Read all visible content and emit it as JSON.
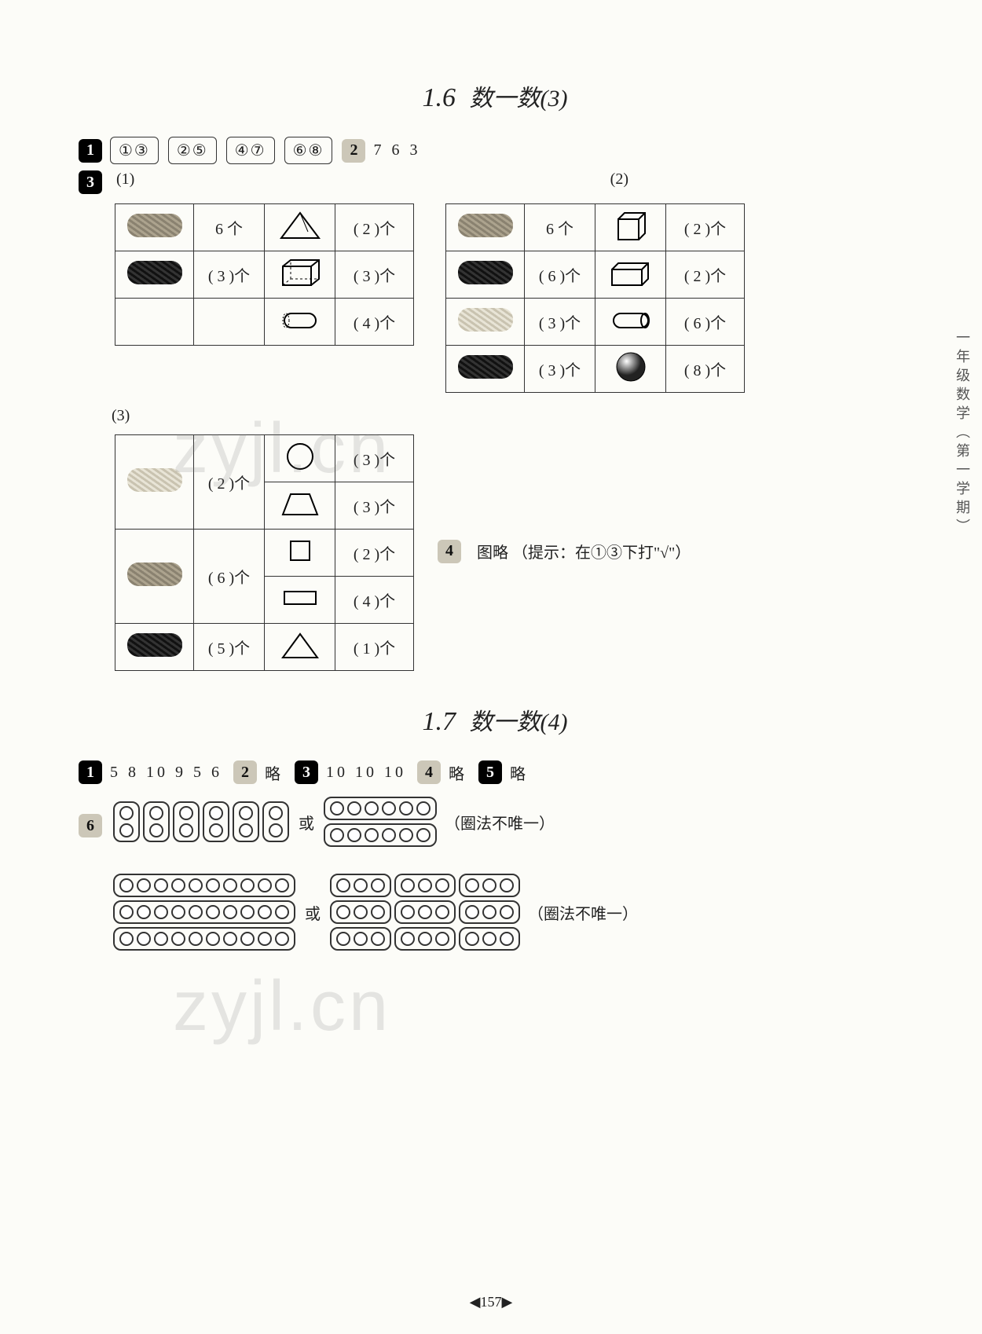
{
  "sideLabel": "一年级数学（第一学期）",
  "pageNumber": "◀157▶",
  "watermark_upper": "zyjl.cn",
  "watermark_lower": "zyjl.cn",
  "section16": {
    "title_num": "1.6",
    "title_text": "数一数(3)",
    "q1": {
      "boxes": [
        "①③",
        "②⑤",
        "④⑦",
        "⑥⑧"
      ]
    },
    "q2": {
      "values": "7  6  3"
    },
    "q3": {
      "sub1_label": "(1)",
      "sub2_label": "(2)",
      "sub3_label": "(3)",
      "t1": {
        "rows": [
          {
            "scribble": "mid",
            "count": "6 个",
            "shape": "triangle-3d",
            "shape_count": "( 2 )个"
          },
          {
            "scribble": "dark",
            "count": "( 3 )个",
            "shape": "cuboid-wire",
            "shape_count": "( 3 )个"
          },
          {
            "scribble": "",
            "count": "",
            "shape": "cylinder-h",
            "shape_count": "( 4 )个"
          }
        ]
      },
      "t2": {
        "rows": [
          {
            "scribble": "mid",
            "count": "6 个",
            "shape": "cube",
            "shape_count": "( 2 )个"
          },
          {
            "scribble": "dark",
            "count": "( 6 )个",
            "shape": "cuboid",
            "shape_count": "( 2 )个"
          },
          {
            "scribble": "light",
            "count": "( 3 )个",
            "shape": "cylinder",
            "shape_count": "( 6 )个"
          },
          {
            "scribble": "dark",
            "count": "( 3 )个",
            "shape": "sphere",
            "shape_count": "( 8 )个"
          }
        ]
      },
      "t3": {
        "rows": [
          {
            "scribble": "light",
            "count": "( 2 )个",
            "shape": "circle",
            "shape_count": "( 3 )个"
          },
          {
            "scribble": "",
            "count": "",
            "shape": "trapezoid",
            "shape_count": "( 3 )个"
          },
          {
            "scribble": "mid",
            "count": "( 6 )个",
            "shape": "square",
            "shape_count": "( 2 )个"
          },
          {
            "scribble": "",
            "count": "",
            "shape": "rectangle",
            "shape_count": "( 4 )个"
          },
          {
            "scribble": "dark",
            "count": "( 5 )个",
            "shape": "triangle",
            "shape_count": "( 1 )个"
          }
        ]
      }
    },
    "q4": {
      "text": "图略  （提示：在①③下打\"√\"）"
    }
  },
  "section17": {
    "title_num": "1.7",
    "title_text": "数一数(4)",
    "q1": {
      "values": "5  8  10  9  5  6"
    },
    "q2": {
      "text": "略"
    },
    "q3": {
      "values": "10  10  10"
    },
    "q4": {
      "text": "略"
    },
    "q5": {
      "text": "略"
    },
    "q6": {
      "or": "或",
      "note": "（圈法不唯一）",
      "line1_a_cols": 6,
      "line1_a_rows": 2,
      "line1_b_w": 6,
      "line1_b_h": 2,
      "line2_a_w": 10,
      "line2_a_h": 3,
      "line2_b_w": 9,
      "line2_b_h": 3
    }
  }
}
